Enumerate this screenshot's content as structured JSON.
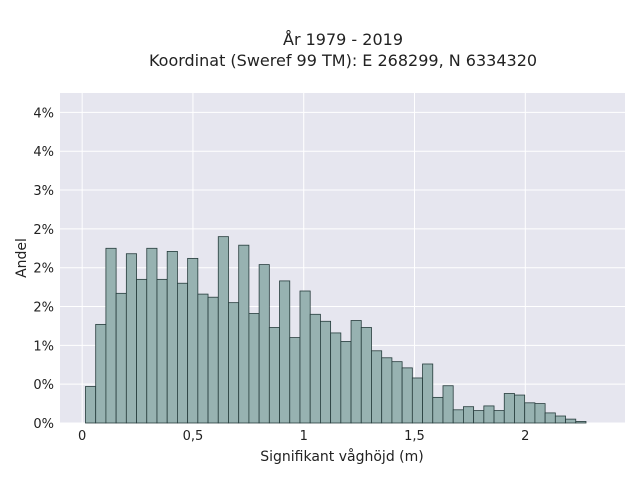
{
  "chart_data": {
    "type": "bar",
    "title_line1": "År 1979 - 2019",
    "title_line2": "Koordinat (Sweref 99 TM): E 268299, N 6334320",
    "xlabel": "Signifikant våghöjd (m)",
    "ylabel": "Andel",
    "xlim": [
      -0.1,
      2.45
    ],
    "ylim": [
      0,
      0.0425
    ],
    "x_ticks": [
      {
        "value": 0,
        "label": "0"
      },
      {
        "value": 0.5,
        "label": "0,5"
      },
      {
        "value": 1,
        "label": "1"
      },
      {
        "value": 1.5,
        "label": "1,5"
      },
      {
        "value": 2,
        "label": "2"
      }
    ],
    "y_ticks": [
      {
        "value": 0,
        "label": "0%"
      },
      {
        "value": 0.005,
        "label": "0%"
      },
      {
        "value": 0.01,
        "label": "1%"
      },
      {
        "value": 0.015,
        "label": "2%"
      },
      {
        "value": 0.02,
        "label": "2%"
      },
      {
        "value": 0.025,
        "label": "2%"
      },
      {
        "value": 0.03,
        "label": "3%"
      },
      {
        "value": 0.035,
        "label": "4%"
      },
      {
        "value": 0.04,
        "label": "4%"
      }
    ],
    "bin_start": 0.015,
    "bin_width": 0.0461,
    "values": [
      0.0047,
      0.0127,
      0.0225,
      0.0167,
      0.0218,
      0.0185,
      0.0225,
      0.0185,
      0.0221,
      0.018,
      0.0212,
      0.0166,
      0.0162,
      0.024,
      0.0155,
      0.0229,
      0.0141,
      0.0204,
      0.0123,
      0.0183,
      0.011,
      0.017,
      0.014,
      0.0131,
      0.0116,
      0.0105,
      0.0132,
      0.0123,
      0.0093,
      0.0084,
      0.0079,
      0.0071,
      0.0058,
      0.0076,
      0.0033,
      0.0048,
      0.0017,
      0.0021,
      0.0016,
      0.0022,
      0.0016,
      0.0038,
      0.0036,
      0.0026,
      0.0025,
      0.0013,
      0.0009,
      0.0005,
      0.0002
    ]
  }
}
